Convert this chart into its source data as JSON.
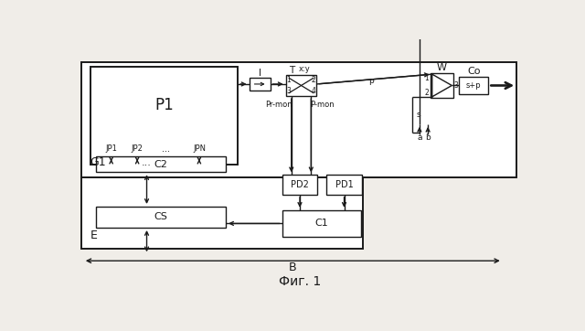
{
  "bg_color": "#f0ede8",
  "line_color": "#1a1a1a",
  "box_fill": "#ffffff",
  "title": "Фиг. 1",
  "labels": {
    "G1": "G1",
    "P1": "P1",
    "C2": "C2",
    "CS": "CS",
    "E": "E",
    "C1": "C1",
    "PD2": "PD2",
    "PD1": "PD1",
    "I": "I",
    "T": "T",
    "xy": "x:y",
    "W": "W",
    "Co": "Co",
    "JP1": "JP1",
    "JP2": "JP2",
    "JPN": "JPN",
    "Pr_mon": "Pr-mon",
    "P_mon": "P-mon",
    "B": "B",
    "a": "a",
    "b": "b",
    "p": "p",
    "s": "s",
    "s_plus_p": "s+p"
  }
}
